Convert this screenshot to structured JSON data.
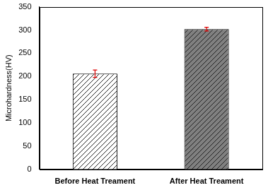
{
  "chart_data": {
    "type": "bar",
    "categories": [
      "Before Heat Treament",
      "After Heat Treament"
    ],
    "values": [
      206,
      302
    ],
    "errors": [
      8,
      4
    ],
    "colors": [
      "#ffffff",
      "#808080"
    ],
    "y_label": "Microhardness(HV)",
    "ylim": [
      0,
      350
    ],
    "yticks": [
      0,
      50,
      100,
      150,
      200,
      250,
      300,
      350
    ],
    "grid": false
  }
}
